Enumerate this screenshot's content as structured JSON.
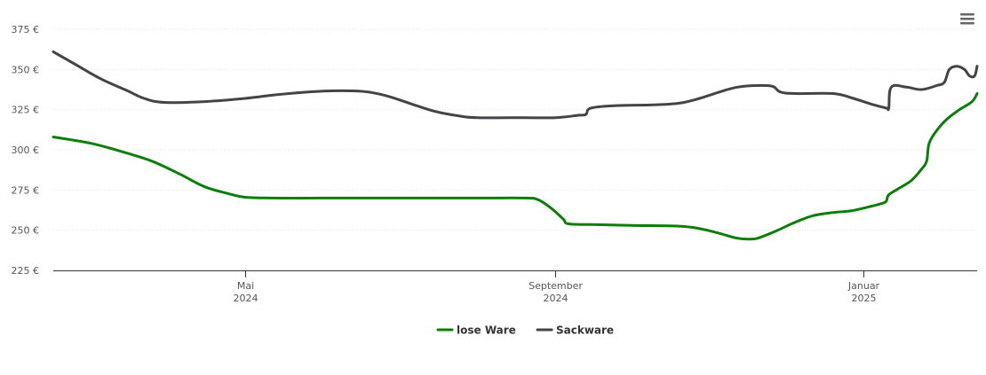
{
  "chart_data": {
    "type": "line",
    "title": "",
    "xlabel": "",
    "ylabel": "",
    "ylim": [
      225,
      375
    ],
    "y_ticks": [
      {
        "value": 375,
        "label": "375 €"
      },
      {
        "value": 350,
        "label": "350 €"
      },
      {
        "value": 325,
        "label": "325 €"
      },
      {
        "value": 300,
        "label": "300 €"
      },
      {
        "value": 275,
        "label": "275 €"
      },
      {
        "value": 250,
        "label": "250 €"
      },
      {
        "value": 225,
        "label": "225 €"
      }
    ],
    "x_range": [
      "2024-02-15",
      "2025-02-15"
    ],
    "x_ticks": [
      {
        "date": "2024-05-01",
        "line1": "Mai",
        "line2": "2024"
      },
      {
        "date": "2024-09-01",
        "line1": "September",
        "line2": "2024"
      },
      {
        "date": "2025-01-01",
        "line1": "Januar",
        "line2": "2025"
      }
    ],
    "grid": true,
    "legend_position": "bottom-center",
    "series": [
      {
        "name": "lose Ware",
        "color": "#0a7e07",
        "points": [
          [
            "2024-02-15",
            308
          ],
          [
            "2024-03-01",
            304
          ],
          [
            "2024-03-15",
            298
          ],
          [
            "2024-03-25",
            293
          ],
          [
            "2024-04-05",
            285
          ],
          [
            "2024-04-15",
            277
          ],
          [
            "2024-04-25",
            272.5
          ],
          [
            "2024-05-01",
            270.5
          ],
          [
            "2024-05-12",
            270
          ],
          [
            "2024-06-01",
            270
          ],
          [
            "2024-07-01",
            270
          ],
          [
            "2024-08-01",
            270
          ],
          [
            "2024-08-20",
            270
          ],
          [
            "2024-08-25",
            269
          ],
          [
            "2024-08-30",
            264
          ],
          [
            "2024-09-04",
            257
          ],
          [
            "2024-09-06",
            254
          ],
          [
            "2024-09-15",
            253.5
          ],
          [
            "2024-10-01",
            253
          ],
          [
            "2024-10-20",
            252.5
          ],
          [
            "2024-10-28",
            251
          ],
          [
            "2024-11-05",
            248
          ],
          [
            "2024-11-12",
            245
          ],
          [
            "2024-11-18",
            244.5
          ],
          [
            "2024-11-21",
            245.5
          ],
          [
            "2024-11-28",
            250
          ],
          [
            "2024-12-05",
            255
          ],
          [
            "2024-12-12",
            259
          ],
          [
            "2024-12-20",
            261
          ],
          [
            "2024-12-27",
            262
          ],
          [
            "2025-01-03",
            264.5
          ],
          [
            "2025-01-08",
            266.5
          ],
          [
            "2025-01-10",
            268
          ],
          [
            "2025-01-11",
            272
          ],
          [
            "2025-01-15",
            276
          ],
          [
            "2025-01-20",
            281
          ],
          [
            "2025-01-24",
            288
          ],
          [
            "2025-01-26",
            293
          ],
          [
            "2025-01-27",
            304
          ],
          [
            "2025-01-30",
            312
          ],
          [
            "2025-02-03",
            319
          ],
          [
            "2025-02-08",
            325
          ],
          [
            "2025-02-13",
            330
          ],
          [
            "2025-02-15",
            335
          ]
        ]
      },
      {
        "name": "Sackware",
        "color": "#434348",
        "points": [
          [
            "2024-02-15",
            361
          ],
          [
            "2024-02-25",
            352
          ],
          [
            "2024-03-05",
            344
          ],
          [
            "2024-03-15",
            337
          ],
          [
            "2024-03-22",
            332
          ],
          [
            "2024-03-30",
            329.5
          ],
          [
            "2024-04-15",
            330
          ],
          [
            "2024-05-01",
            332
          ],
          [
            "2024-05-15",
            334.5
          ],
          [
            "2024-06-01",
            336.5
          ],
          [
            "2024-06-15",
            336.5
          ],
          [
            "2024-06-25",
            334
          ],
          [
            "2024-07-05",
            329
          ],
          [
            "2024-07-15",
            324
          ],
          [
            "2024-07-25",
            321
          ],
          [
            "2024-08-01",
            320
          ],
          [
            "2024-08-20",
            320
          ],
          [
            "2024-09-01",
            320
          ],
          [
            "2024-09-10",
            321.5
          ],
          [
            "2024-09-13",
            322
          ],
          [
            "2024-09-15",
            326
          ],
          [
            "2024-09-25",
            327.5
          ],
          [
            "2024-10-10",
            328
          ],
          [
            "2024-10-20",
            329
          ],
          [
            "2024-10-28",
            332
          ],
          [
            "2024-11-05",
            336
          ],
          [
            "2024-11-12",
            339
          ],
          [
            "2024-11-20",
            340
          ],
          [
            "2024-11-26",
            339.5
          ],
          [
            "2024-11-29",
            336
          ],
          [
            "2024-12-05",
            335
          ],
          [
            "2024-12-20",
            335
          ],
          [
            "2024-12-28",
            332
          ],
          [
            "2025-01-05",
            328
          ],
          [
            "2025-01-10",
            326
          ],
          [
            "2025-01-11",
            326
          ],
          [
            "2025-01-12",
            339
          ],
          [
            "2025-01-18",
            339
          ],
          [
            "2025-01-24",
            337.5
          ],
          [
            "2025-01-30",
            340
          ],
          [
            "2025-02-02",
            342
          ],
          [
            "2025-02-04",
            350
          ],
          [
            "2025-02-07",
            352
          ],
          [
            "2025-02-10",
            350
          ],
          [
            "2025-02-12",
            346
          ],
          [
            "2025-02-14",
            346
          ],
          [
            "2025-02-15",
            352
          ]
        ]
      }
    ]
  },
  "colors": {
    "grid": "#e6e6e6",
    "axis_line": "#333333",
    "menu_icon": "#666666"
  },
  "toolbar": {
    "menu_icon": "hamburger-menu-icon"
  }
}
